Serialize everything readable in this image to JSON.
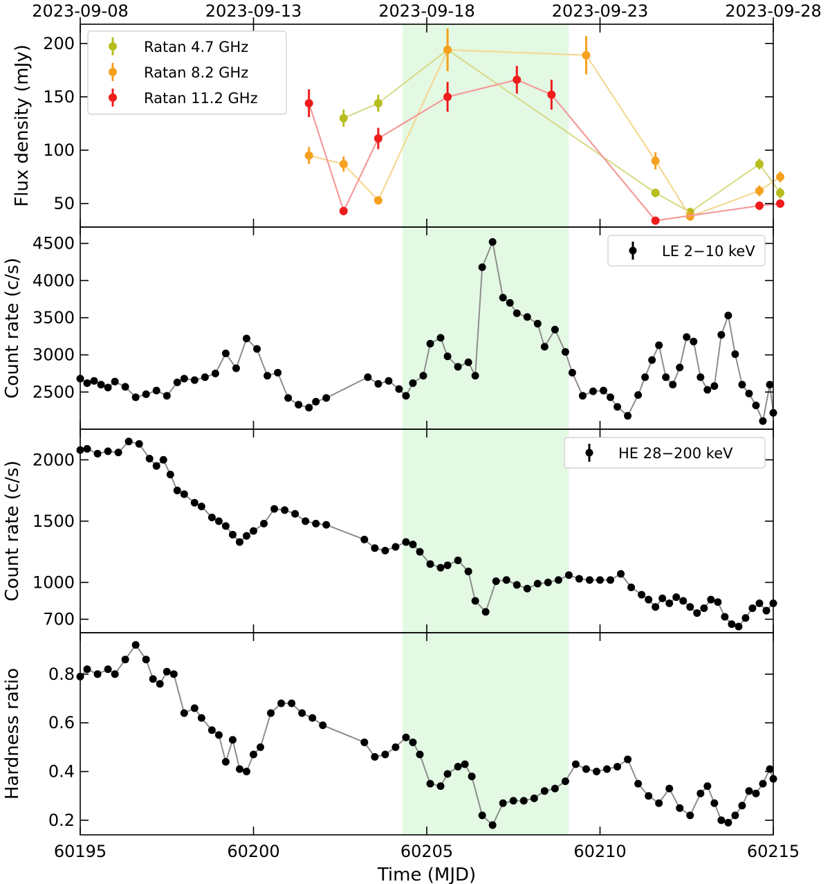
{
  "chart_data": {
    "type": "scatter",
    "x_label": "Time (MJD)",
    "x_range": [
      60195,
      60215
    ],
    "x_ticks": [
      60195,
      60200,
      60205,
      60210,
      60215
    ],
    "x_tick_labels": [
      "60195",
      "60200",
      "60205",
      "60210",
      "60215"
    ],
    "top_ticks": [
      60195,
      60200,
      60205,
      60210,
      60215
    ],
    "top_tick_labels": [
      "2023-09-08",
      "2023-09-13",
      "2023-09-18",
      "2023-09-23",
      "2023-09-28"
    ],
    "highlight_span": [
      60204.3,
      60209.1
    ],
    "highlight_color": "#e3f9e3",
    "panels": [
      {
        "id": "radio",
        "ylabel": "Flux density (mJy)",
        "ylim": [
          28,
          218
        ],
        "yticks": [
          50,
          100,
          150,
          200
        ],
        "ytick_labels": [
          "50",
          "100",
          "150",
          "200"
        ],
        "legend_position": "top-left",
        "series": [
          {
            "name": "Ratan 4.7 GHz",
            "color": "#b5bd1f",
            "line_color": "#d8dc8c",
            "x": [
              60202.6,
              60203.6,
              60205.6,
              60211.6,
              60212.6,
              60214.6,
              60215.2
            ],
            "y": [
              130,
              144,
              194,
              60,
              42,
              87,
              60
            ],
            "yerr": [
              8,
              8,
              20,
              4,
              4,
              5,
              5
            ]
          },
          {
            "name": "Ratan 8.2 GHz",
            "color": "#f5a11f",
            "line_color": "#f6d894",
            "x": [
              60201.6,
              60202.6,
              60203.6,
              60205.6,
              60209.6,
              60211.6,
              60212.6,
              60214.6,
              60215.2
            ],
            "y": [
              95,
              87,
              53,
              194,
              189,
              90,
              38,
              62,
              75
            ],
            "yerr": [
              8,
              7,
              4,
              20,
              18,
              8,
              4,
              5,
              5
            ]
          },
          {
            "name": "Ratan 11.2 GHz",
            "color": "#ee1c1c",
            "line_color": "#f49a9a",
            "x": [
              60201.6,
              60202.6,
              60203.6,
              60205.6,
              60207.6,
              60208.6,
              60211.6,
              60214.6,
              60215.2
            ],
            "y": [
              144,
              43,
              111,
              150,
              166,
              152,
              34,
              48,
              50
            ],
            "yerr": [
              13,
              4,
              10,
              14,
              13,
              14,
              3,
              4,
              4
            ]
          }
        ]
      },
      {
        "id": "le",
        "ylabel": "Count rate (c/s)",
        "ylim": [
          2000,
          4720
        ],
        "yticks": [
          2500,
          3000,
          3500,
          4000,
          4500
        ],
        "ytick_labels": [
          "2500",
          "3000",
          "3500",
          "4000",
          "4500"
        ],
        "legend_position": "top-right",
        "series": [
          {
            "name": "LE 2−10 keV",
            "color": "#000000",
            "line_color": "#8c8c8c",
            "x": [
              60195.0,
              60195.2,
              60195.4,
              60195.6,
              60195.8,
              60196.0,
              60196.3,
              60196.6,
              60196.9,
              60197.2,
              60197.5,
              60197.8,
              60198.0,
              60198.3,
              60198.6,
              60198.9,
              60199.2,
              60199.5,
              60199.8,
              60200.1,
              60200.4,
              60200.7,
              60201.0,
              60201.3,
              60201.6,
              60201.8,
              60202.1,
              60203.3,
              60203.6,
              60203.9,
              60204.2,
              60204.4,
              60204.6,
              60204.9,
              60205.1,
              60205.4,
              60205.6,
              60205.9,
              60206.2,
              60206.4,
              60206.6,
              60206.9,
              60207.2,
              60207.4,
              60207.6,
              60207.9,
              60208.2,
              60208.4,
              60208.7,
              60209.0,
              60209.2,
              60209.5,
              60209.8,
              60210.1,
              60210.3,
              60210.5,
              60210.8,
              60211.1,
              60211.3,
              60211.5,
              60211.7,
              60211.9,
              60212.1,
              60212.3,
              60212.5,
              60212.7,
              60212.9,
              60213.1,
              60213.3,
              60213.5,
              60213.7,
              60213.9,
              60214.1,
              60214.3,
              60214.5,
              60214.7,
              60214.9,
              60215.0
            ],
            "y": [
              2680,
              2620,
              2650,
              2600,
              2560,
              2640,
              2570,
              2430,
              2470,
              2520,
              2450,
              2630,
              2680,
              2660,
              2700,
              2750,
              3020,
              2820,
              3220,
              3080,
              2720,
              2760,
              2420,
              2330,
              2290,
              2370,
              2420,
              2700,
              2610,
              2650,
              2540,
              2450,
              2620,
              2720,
              3150,
              3230,
              2980,
              2840,
              2900,
              2720,
              4180,
              4520,
              3770,
              3700,
              3560,
              3510,
              3420,
              3110,
              3340,
              3040,
              2760,
              2450,
              2510,
              2520,
              2430,
              2300,
              2180,
              2460,
              2700,
              2930,
              3130,
              2700,
              2600,
              2830,
              3240,
              3180,
              2700,
              2530,
              2580,
              3270,
              3530,
              3010,
              2600,
              2480,
              2320,
              2110,
              2600,
              2220
            ],
            "yerr": [
              15,
              15,
              15,
              15,
              15,
              15,
              15,
              15,
              15,
              15,
              15,
              15,
              15,
              15,
              15,
              15,
              15,
              15,
              15,
              15,
              15,
              15,
              15,
              15,
              15,
              15,
              15,
              15,
              15,
              15,
              15,
              15,
              15,
              15,
              15,
              15,
              15,
              15,
              15,
              15,
              15,
              15,
              15,
              15,
              15,
              15,
              15,
              15,
              15,
              15,
              15,
              15,
              15,
              15,
              15,
              15,
              15,
              15,
              15,
              15,
              15,
              15,
              15,
              15,
              15,
              15,
              15,
              15,
              15,
              15,
              15,
              15,
              15,
              15,
              15,
              15,
              15,
              15
            ]
          }
        ]
      },
      {
        "id": "he",
        "ylabel": "Count rate (c/s)",
        "ylim": [
          590,
          2250
        ],
        "yticks": [
          700,
          1000,
          1500,
          2000
        ],
        "ytick_labels": [
          "700",
          "1000",
          "1500",
          "2000"
        ],
        "legend_position": "top-right",
        "series": [
          {
            "name": "HE 28−200 keV",
            "color": "#000000",
            "line_color": "#8c8c8c",
            "x": [
              60195.0,
              60195.2,
              60195.5,
              60195.8,
              60196.1,
              60196.4,
              60196.7,
              60197.0,
              60197.2,
              60197.4,
              60197.6,
              60197.8,
              60198.0,
              60198.3,
              60198.5,
              60198.8,
              60199.0,
              60199.2,
              60199.4,
              60199.6,
              60199.8,
              60200.0,
              60200.3,
              60200.6,
              60200.9,
              60201.2,
              60201.5,
              60201.8,
              60202.1,
              60203.2,
              60203.5,
              60203.8,
              60204.1,
              60204.4,
              60204.6,
              60204.8,
              60205.1,
              60205.4,
              60205.6,
              60205.9,
              60206.2,
              60206.4,
              60206.7,
              60207.0,
              60207.3,
              60207.6,
              60207.9,
              60208.2,
              60208.5,
              60208.8,
              60209.1,
              60209.4,
              60209.7,
              60210.0,
              60210.3,
              60210.6,
              60210.9,
              60211.2,
              60211.4,
              60211.6,
              60211.8,
              60212.0,
              60212.2,
              60212.4,
              60212.6,
              60212.8,
              60213.0,
              60213.2,
              60213.4,
              60213.6,
              60213.8,
              60214.0,
              60214.2,
              60214.4,
              60214.6,
              60214.8,
              60215.0
            ],
            "y": [
              2080,
              2090,
              2050,
              2070,
              2060,
              2150,
              2130,
              2010,
              1950,
              2000,
              1880,
              1750,
              1720,
              1650,
              1620,
              1530,
              1500,
              1460,
              1390,
              1330,
              1380,
              1420,
              1480,
              1600,
              1590,
              1560,
              1500,
              1480,
              1470,
              1350,
              1280,
              1260,
              1290,
              1330,
              1310,
              1250,
              1150,
              1120,
              1140,
              1180,
              1090,
              850,
              760,
              1010,
              1020,
              980,
              950,
              990,
              1000,
              1020,
              1060,
              1030,
              1020,
              1020,
              1020,
              1070,
              960,
              900,
              860,
              800,
              870,
              830,
              880,
              850,
              800,
              750,
              790,
              860,
              840,
              720,
              660,
              640,
              710,
              790,
              830,
              770,
              830
            ],
            "yerr": [
              5,
              5,
              5,
              5,
              5,
              5,
              5,
              5,
              5,
              5,
              5,
              5,
              5,
              5,
              5,
              5,
              5,
              5,
              5,
              5,
              5,
              5,
              5,
              5,
              5,
              5,
              5,
              5,
              5,
              5,
              5,
              5,
              5,
              5,
              5,
              5,
              5,
              5,
              5,
              5,
              5,
              5,
              5,
              5,
              5,
              5,
              5,
              5,
              5,
              5,
              5,
              5,
              5,
              5,
              5,
              5,
              5,
              5,
              5,
              5,
              5,
              5,
              5,
              5,
              5,
              5,
              5,
              5,
              5,
              5,
              5,
              5,
              5,
              5,
              5,
              5,
              5
            ]
          }
        ]
      },
      {
        "id": "hardness",
        "ylabel": "Hardness ratio",
        "ylim": [
          0.14,
          0.97
        ],
        "yticks": [
          0.2,
          0.4,
          0.6,
          0.8
        ],
        "ytick_labels": [
          "0.2",
          "0.4",
          "0.6",
          "0.8"
        ],
        "series": [
          {
            "name": "Hardness ratio",
            "color": "#000000",
            "line_color": "#8c8c8c",
            "x": [
              60195.0,
              60195.2,
              60195.5,
              60195.8,
              60196.0,
              60196.3,
              60196.6,
              60196.9,
              60197.1,
              60197.3,
              60197.5,
              60197.7,
              60198.0,
              60198.3,
              60198.5,
              60198.8,
              60199.0,
              60199.2,
              60199.4,
              60199.6,
              60199.8,
              60200.0,
              60200.2,
              60200.5,
              60200.8,
              60201.1,
              60201.4,
              60201.7,
              60202.0,
              60203.2,
              60203.5,
              60203.8,
              60204.1,
              60204.4,
              60204.6,
              60204.8,
              60205.1,
              60205.4,
              60205.6,
              60205.9,
              60206.1,
              60206.3,
              60206.6,
              60206.9,
              60207.2,
              60207.5,
              60207.8,
              60208.1,
              60208.4,
              60208.7,
              60209.0,
              60209.3,
              60209.6,
              60209.9,
              60210.2,
              60210.5,
              60210.8,
              60211.1,
              60211.4,
              60211.7,
              60212.0,
              60212.3,
              60212.6,
              60212.9,
              60213.1,
              60213.3,
              60213.5,
              60213.7,
              60213.9,
              60214.1,
              60214.3,
              60214.5,
              60214.7,
              60214.9,
              60215.0
            ],
            "y": [
              0.79,
              0.82,
              0.8,
              0.82,
              0.8,
              0.86,
              0.92,
              0.86,
              0.78,
              0.76,
              0.81,
              0.8,
              0.64,
              0.66,
              0.62,
              0.57,
              0.55,
              0.44,
              0.53,
              0.41,
              0.4,
              0.47,
              0.5,
              0.64,
              0.68,
              0.68,
              0.64,
              0.62,
              0.59,
              0.52,
              0.46,
              0.47,
              0.5,
              0.54,
              0.52,
              0.47,
              0.35,
              0.34,
              0.39,
              0.42,
              0.43,
              0.38,
              0.22,
              0.18,
              0.27,
              0.28,
              0.28,
              0.29,
              0.32,
              0.33,
              0.36,
              0.43,
              0.41,
              0.4,
              0.41,
              0.42,
              0.45,
              0.35,
              0.3,
              0.27,
              0.33,
              0.25,
              0.22,
              0.31,
              0.34,
              0.27,
              0.2,
              0.19,
              0.22,
              0.26,
              0.32,
              0.31,
              0.35,
              0.41,
              0.37
            ],
            "yerr": [
              0.005,
              0.005,
              0.005,
              0.005,
              0.005,
              0.005,
              0.005,
              0.005,
              0.005,
              0.005,
              0.005,
              0.005,
              0.005,
              0.005,
              0.005,
              0.005,
              0.005,
              0.005,
              0.005,
              0.005,
              0.005,
              0.005,
              0.005,
              0.005,
              0.005,
              0.005,
              0.005,
              0.005,
              0.005,
              0.005,
              0.005,
              0.005,
              0.005,
              0.005,
              0.005,
              0.005,
              0.005,
              0.005,
              0.005,
              0.005,
              0.005,
              0.005,
              0.005,
              0.005,
              0.005,
              0.005,
              0.005,
              0.005,
              0.005,
              0.005,
              0.005,
              0.005,
              0.005,
              0.005,
              0.005,
              0.005,
              0.005,
              0.005,
              0.005,
              0.005,
              0.005,
              0.005,
              0.005,
              0.005,
              0.005,
              0.005,
              0.005,
              0.005,
              0.005,
              0.005,
              0.005,
              0.005,
              0.005,
              0.005,
              0.005
            ]
          }
        ]
      }
    ]
  }
}
